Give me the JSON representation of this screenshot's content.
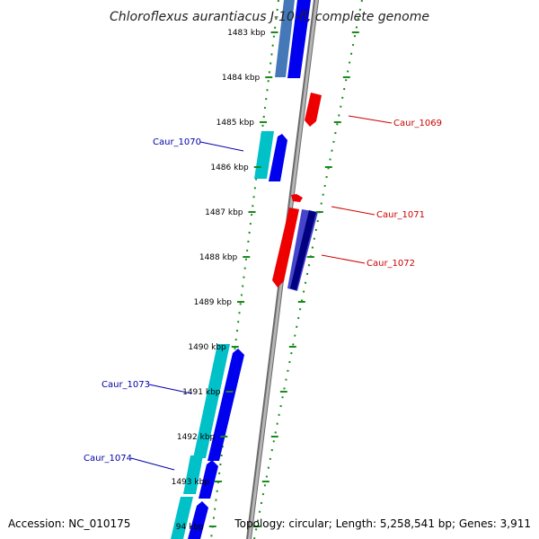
{
  "title": "Chloroflexus aurantiacus J-10-fl, complete genome",
  "footer": {
    "accession": "Accession: NC_010175",
    "summary": "Topology: circular; Length: 5,258,541 bp; Genes: 3,911"
  },
  "ticks": [
    {
      "label": "1483 kbp"
    },
    {
      "label": "1484 kbp"
    },
    {
      "label": "1485 kbp"
    },
    {
      "label": "1486 kbp"
    },
    {
      "label": "1487 kbp"
    },
    {
      "label": "1488 kbp"
    },
    {
      "label": "1489 kbp"
    },
    {
      "label": "1490 kbp"
    },
    {
      "label": "1491 kbp"
    },
    {
      "label": "1492 kbp"
    },
    {
      "label": "1493 kbp"
    },
    {
      "label": "94 kbp"
    }
  ],
  "gene_labels": [
    {
      "name": "Caur_1070",
      "strand": "forward",
      "color": "#0000aa"
    },
    {
      "name": "Caur_1073",
      "strand": "forward",
      "color": "#0000aa"
    },
    {
      "name": "Caur_1074",
      "strand": "forward",
      "color": "#0000aa"
    },
    {
      "name": "Caur_1069",
      "strand": "reverse",
      "color": "#cc0000"
    },
    {
      "name": "Caur_1071",
      "strand": "reverse",
      "color": "#cc0000"
    },
    {
      "name": "Caur_1072",
      "strand": "reverse",
      "color": "#cc0000"
    }
  ],
  "colors": {
    "backbone": "#888888",
    "forward_gene": "#0000ee",
    "forward_cds": "#00c8c8",
    "reverse_gene": "#ee0000",
    "reverse_dark": "#000080",
    "tick_dots": "#1a8a1a"
  }
}
